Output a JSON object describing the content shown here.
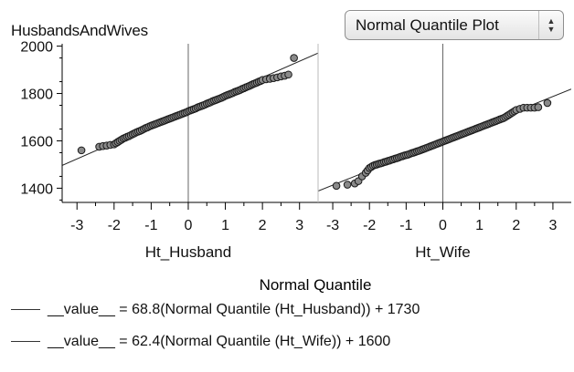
{
  "dataset_title": "HusbandsAndWives",
  "plot_type_select": {
    "selected": "Normal Quantile Plot",
    "arrow_up": "▲",
    "arrow_down": "▼"
  },
  "x_axis_title": "Normal Quantile",
  "equations": [
    "__value__ = 68.8(Normal Quantile (Ht_Husband)) + 1730",
    "__value__ = 62.4(Normal Quantile (Ht_Wife)) + 1600"
  ],
  "colors": {
    "point_fill": "#8a8a8a",
    "point_stroke": "#1a1a1a",
    "axis": "#000000",
    "fit_line": "#222222",
    "zero_line": "#666666"
  },
  "chart_data": [
    {
      "type": "scatter",
      "title": "Ht_Husband",
      "xlabel": "Normal Quantile",
      "ylabel": "",
      "xlim": [
        -3.4,
        3.5
      ],
      "ylim": [
        1340,
        2010
      ],
      "x_ticks": [
        -3,
        -2,
        -1,
        0,
        1,
        2,
        3
      ],
      "y_ticks": [
        1400,
        1600,
        1800,
        2000
      ],
      "grid": false,
      "fit_line": {
        "slope": 68.8,
        "intercept": 1730
      },
      "x": [
        -2.88,
        -2.4,
        -2.3,
        -2.2,
        -2.1,
        -2.0,
        -1.95,
        -1.9,
        -1.85,
        -1.8,
        -1.75,
        -1.7,
        -1.65,
        -1.6,
        -1.55,
        -1.5,
        -1.45,
        -1.4,
        -1.35,
        -1.3,
        -1.25,
        -1.2,
        -1.15,
        -1.1,
        -1.05,
        -1.0,
        -0.95,
        -0.9,
        -0.85,
        -0.8,
        -0.75,
        -0.7,
        -0.65,
        -0.6,
        -0.55,
        -0.5,
        -0.45,
        -0.4,
        -0.35,
        -0.3,
        -0.25,
        -0.2,
        -0.15,
        -0.1,
        -0.05,
        0.0,
        0.05,
        0.1,
        0.15,
        0.2,
        0.25,
        0.3,
        0.35,
        0.4,
        0.45,
        0.5,
        0.55,
        0.6,
        0.65,
        0.7,
        0.75,
        0.8,
        0.85,
        0.9,
        0.95,
        1.0,
        1.05,
        1.1,
        1.15,
        1.2,
        1.25,
        1.3,
        1.35,
        1.4,
        1.45,
        1.5,
        1.55,
        1.6,
        1.65,
        1.7,
        1.75,
        1.8,
        1.85,
        1.9,
        1.95,
        2.0,
        2.1,
        2.2,
        2.3,
        2.4,
        2.5,
        2.6,
        2.7,
        2.85
      ],
      "values": [
        1560,
        1575,
        1578,
        1580,
        1583,
        1585,
        1590,
        1595,
        1600,
        1605,
        1610,
        1613,
        1617,
        1620,
        1624,
        1628,
        1632,
        1636,
        1639,
        1642,
        1646,
        1650,
        1654,
        1657,
        1661,
        1664,
        1667,
        1670,
        1673,
        1676,
        1679,
        1682,
        1685,
        1688,
        1691,
        1694,
        1697,
        1700,
        1703,
        1706,
        1709,
        1712,
        1715,
        1718,
        1721,
        1725,
        1728,
        1731,
        1734,
        1737,
        1741,
        1744,
        1747,
        1750,
        1753,
        1757,
        1760,
        1763,
        1767,
        1770,
        1773,
        1776,
        1779,
        1782,
        1786,
        1790,
        1793,
        1796,
        1799,
        1802,
        1806,
        1809,
        1812,
        1815,
        1819,
        1822,
        1826,
        1829,
        1832,
        1836,
        1840,
        1843,
        1846,
        1850,
        1853,
        1857,
        1860,
        1862,
        1865,
        1868,
        1872,
        1875,
        1880,
        1950
      ]
    },
    {
      "type": "scatter",
      "title": "Ht_Wife",
      "xlabel": "Normal Quantile",
      "ylabel": "",
      "xlim": [
        -3.4,
        3.5
      ],
      "ylim": [
        1340,
        2010
      ],
      "x_ticks": [
        -3,
        -2,
        -1,
        0,
        1,
        2,
        3
      ],
      "y_ticks": [
        1400,
        1600,
        1800,
        2000
      ],
      "grid": false,
      "fit_line": {
        "slope": 62.4,
        "intercept": 1600
      },
      "x": [
        -2.9,
        -2.6,
        -2.4,
        -2.3,
        -2.2,
        -2.1,
        -2.05,
        -2.0,
        -1.95,
        -1.9,
        -1.85,
        -1.8,
        -1.75,
        -1.7,
        -1.65,
        -1.6,
        -1.55,
        -1.5,
        -1.45,
        -1.4,
        -1.35,
        -1.3,
        -1.25,
        -1.2,
        -1.15,
        -1.1,
        -1.05,
        -1.0,
        -0.95,
        -0.9,
        -0.85,
        -0.8,
        -0.75,
        -0.7,
        -0.65,
        -0.6,
        -0.55,
        -0.5,
        -0.45,
        -0.4,
        -0.35,
        -0.3,
        -0.25,
        -0.2,
        -0.15,
        -0.1,
        -0.05,
        0.0,
        0.05,
        0.1,
        0.15,
        0.2,
        0.25,
        0.3,
        0.35,
        0.4,
        0.45,
        0.5,
        0.55,
        0.6,
        0.65,
        0.7,
        0.75,
        0.8,
        0.85,
        0.9,
        0.95,
        1.0,
        1.05,
        1.1,
        1.15,
        1.2,
        1.25,
        1.3,
        1.35,
        1.4,
        1.45,
        1.5,
        1.55,
        1.6,
        1.65,
        1.7,
        1.75,
        1.8,
        1.85,
        1.9,
        1.95,
        2.0,
        2.1,
        2.2,
        2.3,
        2.4,
        2.5,
        2.6,
        2.85
      ],
      "values": [
        1410,
        1415,
        1420,
        1430,
        1450,
        1465,
        1475,
        1485,
        1490,
        1495,
        1498,
        1500,
        1503,
        1505,
        1507,
        1510,
        1512,
        1515,
        1517,
        1520,
        1522,
        1525,
        1527,
        1530,
        1533,
        1535,
        1538,
        1540,
        1542,
        1545,
        1548,
        1550,
        1553,
        1556,
        1558,
        1561,
        1564,
        1567,
        1570,
        1573,
        1576,
        1579,
        1582,
        1585,
        1588,
        1591,
        1594,
        1597,
        1600,
        1603,
        1606,
        1609,
        1612,
        1615,
        1618,
        1621,
        1624,
        1627,
        1630,
        1633,
        1636,
        1639,
        1642,
        1645,
        1648,
        1651,
        1654,
        1657,
        1660,
        1663,
        1666,
        1669,
        1672,
        1675,
        1678,
        1681,
        1684,
        1687,
        1690,
        1693,
        1696,
        1700,
        1705,
        1710,
        1715,
        1720,
        1725,
        1730,
        1735,
        1740,
        1740,
        1740,
        1740,
        1742,
        1760
      ]
    }
  ]
}
